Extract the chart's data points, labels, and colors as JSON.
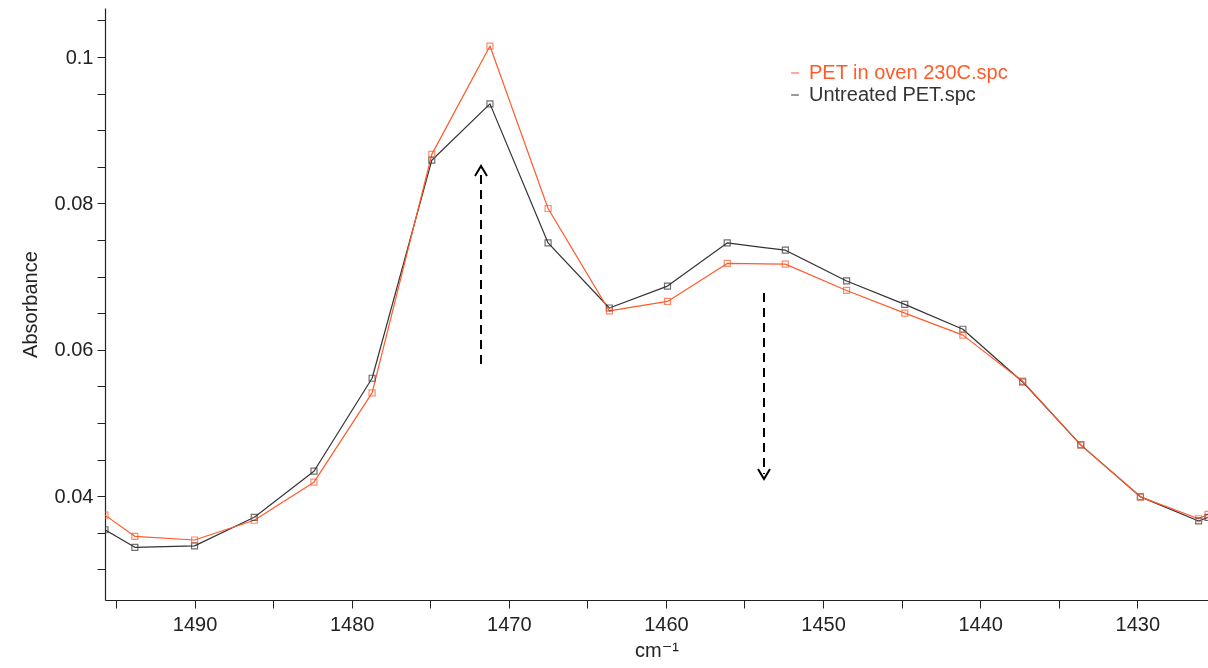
{
  "chart_data": {
    "type": "line",
    "xlabel": "cm⁻¹",
    "ylabel": "Absorbance",
    "x": [
      1495.7,
      1493.8,
      1490.0,
      1486.2,
      1482.4,
      1478.7,
      1474.9,
      1471.2,
      1467.5,
      1463.6,
      1459.9,
      1456.1,
      1452.4,
      1448.5,
      1444.8,
      1441.1,
      1437.3,
      1433.6,
      1429.8,
      1426.1,
      1425.5
    ],
    "series": [
      {
        "name": "PET in oven 230C.spc",
        "color": "#ff5a2a",
        "values": [
          0.0374,
          0.0345,
          0.034,
          0.0367,
          0.0419,
          0.0541,
          0.0867,
          0.1015,
          0.0793,
          0.0653,
          0.0666,
          0.0718,
          0.0717,
          0.0681,
          0.065,
          0.062,
          0.0557,
          0.047,
          0.0399,
          0.0369,
          0.0375
        ]
      },
      {
        "name": "Untreated PET.spc",
        "color": "#333333",
        "values": [
          0.0354,
          0.033,
          0.0332,
          0.0371,
          0.0434,
          0.0561,
          0.0859,
          0.0936,
          0.0746,
          0.0657,
          0.0687,
          0.0746,
          0.0736,
          0.0694,
          0.0662,
          0.0628,
          0.0556,
          0.047,
          0.0399,
          0.0366,
          0.0371
        ]
      }
    ],
    "xlim": [
      1495.7,
      1425.5
    ],
    "xticks": [
      {
        "value": 1495,
        "label": null
      },
      1490,
      {
        "value": 1485,
        "label": null
      },
      1480,
      {
        "value": 1475,
        "label": null
      },
      1470,
      {
        "value": 1465,
        "label": null
      },
      1460,
      {
        "value": 1455,
        "label": null
      },
      1450,
      {
        "value": 1445,
        "label": null
      },
      1440,
      {
        "value": 1435,
        "label": null
      },
      1430
    ],
    "ylim": [
      0.0258,
      0.1067
    ],
    "yticks": [
      {
        "value": 0.03,
        "label": null
      },
      {
        "value": 0.035,
        "label": null
      },
      0.04,
      {
        "value": 0.045,
        "label": null
      },
      {
        "value": 0.05,
        "label": null
      },
      {
        "value": 0.055,
        "label": null
      },
      0.06,
      {
        "value": 0.065,
        "label": null
      },
      {
        "value": 0.07,
        "label": null
      },
      {
        "value": 0.075,
        "label": null
      },
      0.08,
      {
        "value": 0.085,
        "label": null
      },
      {
        "value": 0.09,
        "label": null
      },
      {
        "value": 0.095,
        "label": null
      },
      0.1,
      {
        "value": 0.105,
        "label": null
      }
    ],
    "grid": false,
    "legend": "top right",
    "marker": "square",
    "line_style": "solid"
  }
}
